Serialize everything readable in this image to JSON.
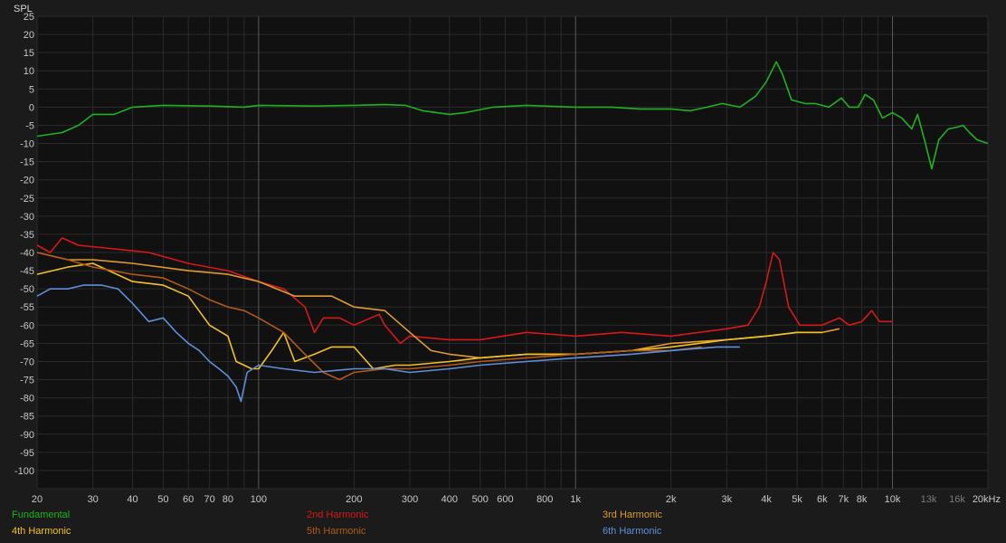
{
  "chart_data": {
    "type": "line",
    "ylabel": "SPL",
    "xscale": "log",
    "xlim": [
      20,
      20000
    ],
    "ylim": [
      -105,
      25
    ],
    "grid": true,
    "legend_position": "bottom",
    "y_ticks": [
      25,
      20,
      15,
      10,
      5,
      0,
      -5,
      -10,
      -15,
      -20,
      -25,
      -30,
      -35,
      -40,
      -45,
      -50,
      -55,
      -60,
      -65,
      -70,
      -75,
      -80,
      -85,
      -90,
      -95,
      -100
    ],
    "x_ticks": [
      {
        "v": 20,
        "label": "20"
      },
      {
        "v": 30,
        "label": "30"
      },
      {
        "v": 40,
        "label": "40"
      },
      {
        "v": 50,
        "label": "50"
      },
      {
        "v": 60,
        "label": "60"
      },
      {
        "v": 70,
        "label": "70"
      },
      {
        "v": 80,
        "label": "80"
      },
      {
        "v": 100,
        "label": "100"
      },
      {
        "v": 200,
        "label": "200"
      },
      {
        "v": 300,
        "label": "300"
      },
      {
        "v": 400,
        "label": "400"
      },
      {
        "v": 500,
        "label": "500"
      },
      {
        "v": 600,
        "label": "600"
      },
      {
        "v": 800,
        "label": "800"
      },
      {
        "v": 1000,
        "label": "1k"
      },
      {
        "v": 2000,
        "label": "2k"
      },
      {
        "v": 3000,
        "label": "3k"
      },
      {
        "v": 4000,
        "label": "4k"
      },
      {
        "v": 5000,
        "label": "5k"
      },
      {
        "v": 6000,
        "label": "6k"
      },
      {
        "v": 7000,
        "label": "7k"
      },
      {
        "v": 8000,
        "label": "8k"
      },
      {
        "v": 10000,
        "label": "10k"
      },
      {
        "v": 13000,
        "label": "13k"
      },
      {
        "v": 16000,
        "label": "16k"
      },
      {
        "v": 20000,
        "label": "20kHz"
      }
    ],
    "series": [
      {
        "name": "Fundamental",
        "color": "#1db31d",
        "points": [
          [
            20,
            -8
          ],
          [
            24,
            -7
          ],
          [
            27,
            -5
          ],
          [
            30,
            -2
          ],
          [
            35,
            -2
          ],
          [
            40,
            0
          ],
          [
            50,
            0.5
          ],
          [
            70,
            0.3
          ],
          [
            90,
            0
          ],
          [
            100,
            0.5
          ],
          [
            150,
            0.3
          ],
          [
            200,
            0.5
          ],
          [
            250,
            0.7
          ],
          [
            290,
            0.5
          ],
          [
            330,
            -1
          ],
          [
            400,
            -2
          ],
          [
            450,
            -1.5
          ],
          [
            550,
            0
          ],
          [
            700,
            0.5
          ],
          [
            1000,
            0
          ],
          [
            1300,
            0
          ],
          [
            1600,
            -0.5
          ],
          [
            2000,
            -0.5
          ],
          [
            2300,
            -1
          ],
          [
            2600,
            0
          ],
          [
            2900,
            1
          ],
          [
            3300,
            0
          ],
          [
            3700,
            3
          ],
          [
            4000,
            7
          ],
          [
            4300,
            12.5
          ],
          [
            4500,
            9
          ],
          [
            4800,
            2
          ],
          [
            5300,
            1
          ],
          [
            5700,
            1
          ],
          [
            6300,
            0
          ],
          [
            6900,
            2.5
          ],
          [
            7300,
            0
          ],
          [
            7800,
            0
          ],
          [
            8200,
            3.5
          ],
          [
            8700,
            2
          ],
          [
            9300,
            -3
          ],
          [
            10000,
            -1.5
          ],
          [
            10700,
            -3
          ],
          [
            11500,
            -6
          ],
          [
            12000,
            -2
          ],
          [
            12700,
            -10
          ],
          [
            13300,
            -17
          ],
          [
            14000,
            -9
          ],
          [
            15000,
            -6
          ],
          [
            16000,
            -5.5
          ],
          [
            16700,
            -5
          ],
          [
            17500,
            -7
          ],
          [
            18500,
            -9
          ],
          [
            20000,
            -10
          ]
        ]
      },
      {
        "name": "2nd Harmonic",
        "color": "#d71818",
        "points": [
          [
            20,
            -38
          ],
          [
            22,
            -40
          ],
          [
            24,
            -36
          ],
          [
            27,
            -38
          ],
          [
            35,
            -39
          ],
          [
            45,
            -40
          ],
          [
            60,
            -43
          ],
          [
            80,
            -45
          ],
          [
            100,
            -48
          ],
          [
            120,
            -50
          ],
          [
            140,
            -55
          ],
          [
            150,
            -62
          ],
          [
            160,
            -58
          ],
          [
            180,
            -58
          ],
          [
            200,
            -60
          ],
          [
            240,
            -57
          ],
          [
            250,
            -60
          ],
          [
            280,
            -65
          ],
          [
            300,
            -63
          ],
          [
            400,
            -64
          ],
          [
            500,
            -64
          ],
          [
            700,
            -62
          ],
          [
            1000,
            -63
          ],
          [
            1400,
            -62
          ],
          [
            2000,
            -63
          ],
          [
            3000,
            -61
          ],
          [
            3500,
            -60
          ],
          [
            3800,
            -55
          ],
          [
            4000,
            -48
          ],
          [
            4200,
            -40
          ],
          [
            4400,
            -42
          ],
          [
            4700,
            -55
          ],
          [
            5100,
            -60
          ],
          [
            6000,
            -60
          ],
          [
            6800,
            -58
          ],
          [
            7300,
            -60
          ],
          [
            8000,
            -59
          ],
          [
            8600,
            -56
          ],
          [
            9100,
            -59
          ],
          [
            10000,
            -59
          ]
        ]
      },
      {
        "name": "3rd Harmonic",
        "color": "#e09a2e",
        "points": [
          [
            20,
            -40
          ],
          [
            25,
            -42
          ],
          [
            30,
            -42
          ],
          [
            40,
            -43
          ],
          [
            60,
            -45
          ],
          [
            80,
            -46
          ],
          [
            100,
            -48
          ],
          [
            130,
            -52
          ],
          [
            170,
            -52
          ],
          [
            200,
            -55
          ],
          [
            250,
            -56
          ],
          [
            300,
            -62
          ],
          [
            350,
            -67
          ],
          [
            400,
            -68
          ],
          [
            500,
            -69
          ],
          [
            700,
            -68
          ],
          [
            1000,
            -68
          ],
          [
            1500,
            -67
          ],
          [
            2000,
            -65
          ],
          [
            3000,
            -64
          ],
          [
            4000,
            -63
          ],
          [
            5000,
            -62
          ],
          [
            6000,
            -62
          ],
          [
            6800,
            -61
          ]
        ]
      },
      {
        "name": "4th Harmonic",
        "color": "#f4c21c",
        "points": [
          [
            20,
            -46
          ],
          [
            25,
            -44
          ],
          [
            30,
            -43
          ],
          [
            40,
            -48
          ],
          [
            50,
            -49
          ],
          [
            60,
            -52
          ],
          [
            70,
            -60
          ],
          [
            80,
            -63
          ],
          [
            85,
            -70
          ],
          [
            90,
            -71
          ],
          [
            95,
            -72
          ],
          [
            100,
            -72
          ],
          [
            110,
            -67
          ],
          [
            120,
            -62
          ],
          [
            130,
            -70
          ],
          [
            150,
            -68
          ],
          [
            170,
            -66
          ],
          [
            200,
            -66
          ],
          [
            230,
            -72
          ],
          [
            270,
            -71
          ],
          [
            300,
            -71
          ],
          [
            400,
            -70
          ],
          [
            500,
            -69
          ],
          [
            700,
            -68
          ],
          [
            1000,
            -68
          ],
          [
            1500,
            -67
          ],
          [
            2000,
            -66
          ],
          [
            3000,
            -64
          ],
          [
            4000,
            -63
          ],
          [
            5000,
            -62
          ],
          [
            6000,
            -62
          ]
        ]
      },
      {
        "name": "5th Harmonic",
        "color": "#b25a16",
        "points": [
          [
            20,
            -40
          ],
          [
            25,
            -42
          ],
          [
            30,
            -44
          ],
          [
            40,
            -46
          ],
          [
            50,
            -47
          ],
          [
            60,
            -50
          ],
          [
            70,
            -53
          ],
          [
            80,
            -55
          ],
          [
            90,
            -56
          ],
          [
            100,
            -58
          ],
          [
            120,
            -62
          ],
          [
            140,
            -68
          ],
          [
            160,
            -73
          ],
          [
            180,
            -75
          ],
          [
            200,
            -73
          ],
          [
            250,
            -72
          ],
          [
            300,
            -72
          ],
          [
            400,
            -71
          ],
          [
            500,
            -70
          ],
          [
            700,
            -69
          ],
          [
            1000,
            -68
          ],
          [
            1500,
            -67
          ],
          [
            2000,
            -67
          ],
          [
            2500,
            -66
          ]
        ]
      },
      {
        "name": "6th Harmonic",
        "color": "#5e8fd8",
        "points": [
          [
            20,
            -52
          ],
          [
            22,
            -50
          ],
          [
            25,
            -50
          ],
          [
            28,
            -49
          ],
          [
            32,
            -49
          ],
          [
            36,
            -50
          ],
          [
            40,
            -54
          ],
          [
            45,
            -59
          ],
          [
            50,
            -58
          ],
          [
            55,
            -62
          ],
          [
            60,
            -65
          ],
          [
            65,
            -67
          ],
          [
            70,
            -70
          ],
          [
            75,
            -72
          ],
          [
            80,
            -74
          ],
          [
            85,
            -77
          ],
          [
            88,
            -81
          ],
          [
            92,
            -73
          ],
          [
            100,
            -71
          ],
          [
            120,
            -72
          ],
          [
            150,
            -73
          ],
          [
            200,
            -72
          ],
          [
            250,
            -72
          ],
          [
            300,
            -73
          ],
          [
            400,
            -72
          ],
          [
            500,
            -71
          ],
          [
            700,
            -70
          ],
          [
            1000,
            -69
          ],
          [
            1500,
            -68
          ],
          [
            2000,
            -67
          ],
          [
            2800,
            -66
          ],
          [
            3300,
            -66
          ]
        ]
      }
    ]
  }
}
